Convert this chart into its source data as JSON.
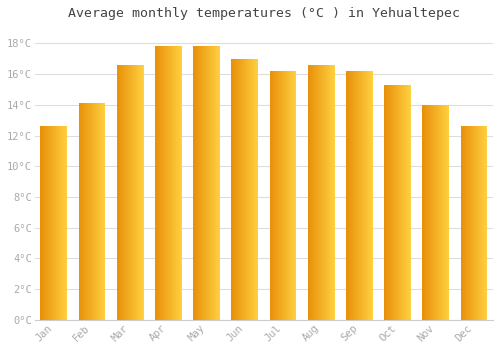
{
  "title": "Average monthly temperatures (°C ) in Yehualtepec",
  "months": [
    "Jan",
    "Feb",
    "Mar",
    "Apr",
    "May",
    "Jun",
    "Jul",
    "Aug",
    "Sep",
    "Oct",
    "Nov",
    "Dec"
  ],
  "values": [
    12.6,
    14.1,
    16.6,
    17.8,
    17.8,
    17.0,
    16.2,
    16.6,
    16.2,
    15.3,
    14.0,
    12.6
  ],
  "bar_color_left": "#E8900A",
  "bar_color_right": "#FFD040",
  "background_color": "#FFFFFF",
  "grid_color": "#DDDDDD",
  "tick_label_color": "#AAAAAA",
  "title_color": "#444444",
  "ylim": [
    0,
    19
  ],
  "yticks": [
    0,
    2,
    4,
    6,
    8,
    10,
    12,
    14,
    16,
    18
  ],
  "ytick_labels": [
    "0°C",
    "2°C",
    "4°C",
    "6°C",
    "8°C",
    "10°C",
    "12°C",
    "14°C",
    "16°C",
    "18°C"
  ]
}
